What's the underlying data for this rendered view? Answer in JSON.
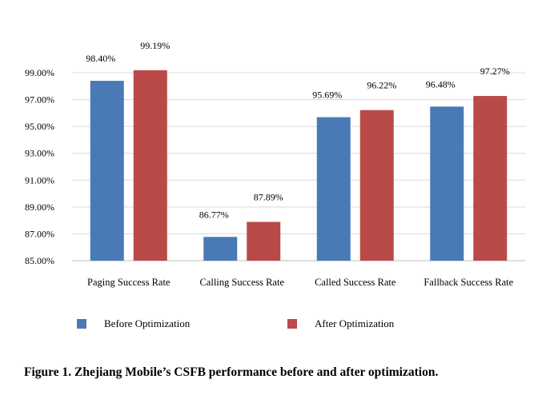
{
  "chart_data": {
    "type": "bar",
    "categories": [
      "Paging Success Rate",
      "Calling Success Rate",
      "Called Success Rate",
      "Fallback Success Rate"
    ],
    "series": [
      {
        "name": "Before Optimization",
        "values": [
          98.4,
          86.77,
          95.69,
          96.48
        ],
        "labels": [
          "98.40%",
          "86.77%",
          "95.69%",
          "96.48%"
        ],
        "color": "#4a7ab5"
      },
      {
        "name": "After Optimization",
        "values": [
          99.19,
          87.89,
          96.22,
          97.27
        ],
        "labels": [
          "99.19%",
          "87.89%",
          "96.22%",
          "97.27%"
        ],
        "color": "#b94a48"
      }
    ],
    "yticks": [
      "85.00%",
      "87.00%",
      "89.00%",
      "91.00%",
      "93.00%",
      "95.00%",
      "97.00%",
      "99.00%"
    ],
    "ylim": [
      85,
      100
    ],
    "grid": true,
    "legend_position": "bottom"
  },
  "caption": "Figure 1. Zhejiang Mobile’s CSFB performance before and after optimization."
}
